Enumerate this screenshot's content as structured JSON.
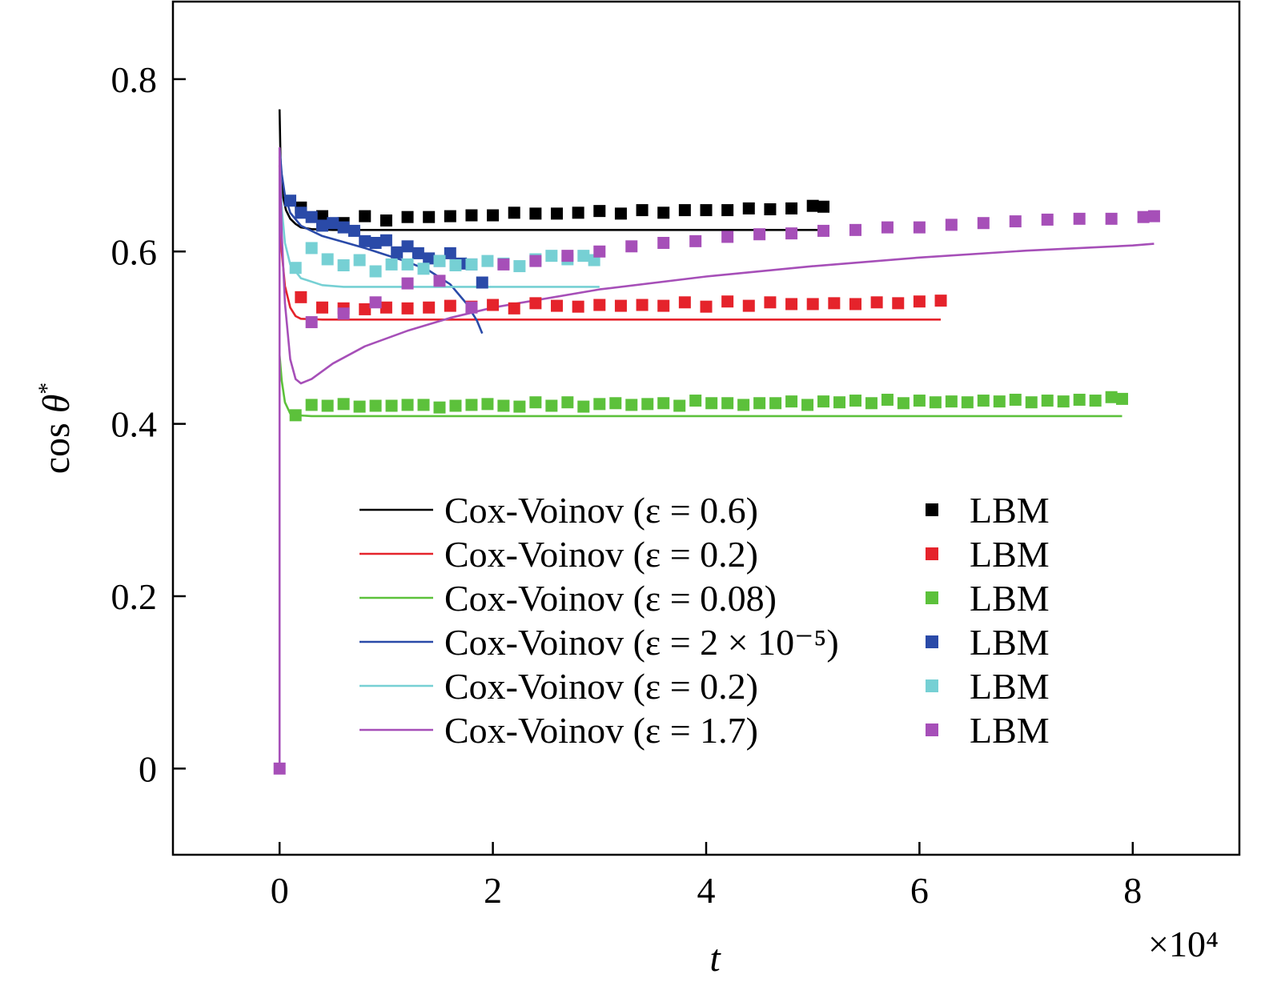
{
  "chart_data": {
    "type": "line",
    "xlabel": "t",
    "ylabel": "cos θ*",
    "x_multiplier": "×10⁴",
    "xlim": [
      -1,
      9
    ],
    "ylim": [
      -0.1,
      0.89
    ],
    "x_ticks": [
      0,
      2,
      4,
      6,
      8
    ],
    "x_tick_labels": [
      "0",
      "2",
      "4",
      "6",
      "8"
    ],
    "y_ticks": [
      0,
      0.2,
      0.4,
      0.6,
      0.8
    ],
    "y_tick_labels": [
      "0",
      "0.2",
      "0.4",
      "0.6",
      "0.8"
    ],
    "grid": false,
    "legend_position": "bottom-center",
    "series": [
      {
        "name": "Cox-Voinov (ε = 0.6)",
        "epsilon": "0.6",
        "color": "#000000",
        "curve": [
          [
            0,
            0.765
          ],
          [
            0.01,
            0.7
          ],
          [
            0.03,
            0.665
          ],
          [
            0.06,
            0.648
          ],
          [
            0.1,
            0.638
          ],
          [
            0.15,
            0.632
          ],
          [
            0.2,
            0.628
          ],
          [
            0.3,
            0.626
          ],
          [
            0.5,
            0.625
          ],
          [
            1,
            0.625
          ],
          [
            2,
            0.625
          ],
          [
            3,
            0.625
          ],
          [
            4,
            0.625
          ],
          [
            5.1,
            0.625
          ]
        ],
        "markers": [
          [
            0.2,
            0.651
          ],
          [
            0.4,
            0.641
          ],
          [
            0.6,
            0.633
          ],
          [
            0.8,
            0.641
          ],
          [
            1.0,
            0.636
          ],
          [
            1.2,
            0.64
          ],
          [
            1.4,
            0.64
          ],
          [
            1.6,
            0.641
          ],
          [
            1.8,
            0.642
          ],
          [
            2.0,
            0.642
          ],
          [
            2.2,
            0.645
          ],
          [
            2.4,
            0.644
          ],
          [
            2.6,
            0.644
          ],
          [
            2.8,
            0.645
          ],
          [
            3.0,
            0.647
          ],
          [
            3.2,
            0.644
          ],
          [
            3.4,
            0.648
          ],
          [
            3.6,
            0.645
          ],
          [
            3.8,
            0.648
          ],
          [
            4.0,
            0.648
          ],
          [
            4.2,
            0.648
          ],
          [
            4.4,
            0.65
          ],
          [
            4.6,
            0.649
          ],
          [
            4.8,
            0.65
          ],
          [
            5.0,
            0.653
          ],
          [
            5.1,
            0.652
          ]
        ]
      },
      {
        "name": "Cox-Voinov (ε = 0.2)",
        "epsilon": "0.2",
        "color": "#e5232b",
        "curve": [
          [
            0,
            0.7
          ],
          [
            0.02,
            0.6
          ],
          [
            0.05,
            0.56
          ],
          [
            0.1,
            0.535
          ],
          [
            0.15,
            0.525
          ],
          [
            0.2,
            0.522
          ],
          [
            0.4,
            0.521
          ],
          [
            1,
            0.521
          ],
          [
            2,
            0.521
          ],
          [
            3,
            0.521
          ],
          [
            4,
            0.521
          ],
          [
            5,
            0.521
          ],
          [
            6.2,
            0.521
          ]
        ],
        "markers": [
          [
            0.2,
            0.547
          ],
          [
            0.4,
            0.535
          ],
          [
            0.6,
            0.534
          ],
          [
            0.8,
            0.533
          ],
          [
            1.0,
            0.535
          ],
          [
            1.2,
            0.534
          ],
          [
            1.4,
            0.535
          ],
          [
            1.6,
            0.537
          ],
          [
            1.8,
            0.536
          ],
          [
            2.0,
            0.538
          ],
          [
            2.2,
            0.534
          ],
          [
            2.4,
            0.54
          ],
          [
            2.6,
            0.537
          ],
          [
            2.8,
            0.536
          ],
          [
            3.0,
            0.538
          ],
          [
            3.2,
            0.537
          ],
          [
            3.4,
            0.538
          ],
          [
            3.6,
            0.537
          ],
          [
            3.8,
            0.541
          ],
          [
            4.0,
            0.536
          ],
          [
            4.2,
            0.542
          ],
          [
            4.4,
            0.537
          ],
          [
            4.6,
            0.541
          ],
          [
            4.8,
            0.539
          ],
          [
            5.0,
            0.539
          ],
          [
            5.2,
            0.54
          ],
          [
            5.4,
            0.539
          ],
          [
            5.6,
            0.541
          ],
          [
            5.8,
            0.54
          ],
          [
            6.0,
            0.542
          ],
          [
            6.2,
            0.543
          ]
        ]
      },
      {
        "name": "Cox-Voinov (ε = 0.08)",
        "epsilon": "0.08",
        "color": "#5cc13b",
        "curve": [
          [
            0,
            0.48
          ],
          [
            0.02,
            0.45
          ],
          [
            0.05,
            0.425
          ],
          [
            0.1,
            0.412
          ],
          [
            0.15,
            0.41
          ],
          [
            0.3,
            0.409
          ],
          [
            1,
            0.409
          ],
          [
            2,
            0.409
          ],
          [
            3,
            0.409
          ],
          [
            4,
            0.409
          ],
          [
            5,
            0.409
          ],
          [
            6,
            0.409
          ],
          [
            7,
            0.409
          ],
          [
            7.9,
            0.409
          ]
        ],
        "markers": [
          [
            0.15,
            0.41
          ],
          [
            0.3,
            0.422
          ],
          [
            0.45,
            0.421
          ],
          [
            0.6,
            0.423
          ],
          [
            0.75,
            0.42
          ],
          [
            0.9,
            0.421
          ],
          [
            1.05,
            0.421
          ],
          [
            1.2,
            0.422
          ],
          [
            1.35,
            0.422
          ],
          [
            1.5,
            0.419
          ],
          [
            1.65,
            0.421
          ],
          [
            1.8,
            0.422
          ],
          [
            1.95,
            0.423
          ],
          [
            2.1,
            0.421
          ],
          [
            2.25,
            0.42
          ],
          [
            2.4,
            0.425
          ],
          [
            2.55,
            0.421
          ],
          [
            2.7,
            0.425
          ],
          [
            2.85,
            0.42
          ],
          [
            3.0,
            0.423
          ],
          [
            3.15,
            0.424
          ],
          [
            3.3,
            0.422
          ],
          [
            3.45,
            0.423
          ],
          [
            3.6,
            0.424
          ],
          [
            3.75,
            0.421
          ],
          [
            3.9,
            0.427
          ],
          [
            4.05,
            0.424
          ],
          [
            4.2,
            0.424
          ],
          [
            4.35,
            0.422
          ],
          [
            4.5,
            0.424
          ],
          [
            4.65,
            0.424
          ],
          [
            4.8,
            0.426
          ],
          [
            4.95,
            0.422
          ],
          [
            5.1,
            0.426
          ],
          [
            5.25,
            0.425
          ],
          [
            5.4,
            0.427
          ],
          [
            5.55,
            0.424
          ],
          [
            5.7,
            0.428
          ],
          [
            5.85,
            0.424
          ],
          [
            6.0,
            0.427
          ],
          [
            6.15,
            0.425
          ],
          [
            6.3,
            0.426
          ],
          [
            6.45,
            0.425
          ],
          [
            6.6,
            0.427
          ],
          [
            6.75,
            0.426
          ],
          [
            6.9,
            0.428
          ],
          [
            7.05,
            0.425
          ],
          [
            7.2,
            0.427
          ],
          [
            7.35,
            0.426
          ],
          [
            7.5,
            0.428
          ],
          [
            7.65,
            0.427
          ],
          [
            7.8,
            0.431
          ],
          [
            7.9,
            0.429
          ]
        ]
      },
      {
        "name": "Cox-Voinov (ε = 2 × 10⁻⁵)",
        "epsilon": "2 × 10⁻⁵",
        "color": "#2a4aa8",
        "curve": [
          [
            0,
            0.72
          ],
          [
            0.02,
            0.69
          ],
          [
            0.05,
            0.665
          ],
          [
            0.1,
            0.645
          ],
          [
            0.2,
            0.63
          ],
          [
            0.4,
            0.618
          ],
          [
            0.6,
            0.611
          ],
          [
            0.8,
            0.604
          ],
          [
            1.0,
            0.596
          ],
          [
            1.2,
            0.588
          ],
          [
            1.4,
            0.578
          ],
          [
            1.6,
            0.562
          ],
          [
            1.75,
            0.54
          ],
          [
            1.85,
            0.52
          ],
          [
            1.9,
            0.505
          ]
        ],
        "markers": [
          [
            0.1,
            0.659
          ],
          [
            0.2,
            0.645
          ],
          [
            0.3,
            0.64
          ],
          [
            0.4,
            0.63
          ],
          [
            0.5,
            0.633
          ],
          [
            0.6,
            0.628
          ],
          [
            0.7,
            0.624
          ],
          [
            0.8,
            0.612
          ],
          [
            0.9,
            0.61
          ],
          [
            1.0,
            0.613
          ],
          [
            1.1,
            0.599
          ],
          [
            1.2,
            0.606
          ],
          [
            1.3,
            0.598
          ],
          [
            1.4,
            0.592
          ],
          [
            1.5,
            0.589
          ],
          [
            1.6,
            0.598
          ],
          [
            1.7,
            0.586
          ],
          [
            1.8,
            0.585
          ],
          [
            1.9,
            0.564
          ]
        ]
      },
      {
        "name": "Cox-Voinov (ε = 0.2)",
        "epsilon": "0.2",
        "color": "#76d0d4",
        "curve": [
          [
            0,
            0.71
          ],
          [
            0.02,
            0.65
          ],
          [
            0.05,
            0.61
          ],
          [
            0.1,
            0.585
          ],
          [
            0.2,
            0.569
          ],
          [
            0.4,
            0.561
          ],
          [
            0.6,
            0.559
          ],
          [
            1,
            0.559
          ],
          [
            2,
            0.559
          ],
          [
            3,
            0.559
          ]
        ],
        "markers": [
          [
            0.15,
            0.581
          ],
          [
            0.3,
            0.604
          ],
          [
            0.45,
            0.591
          ],
          [
            0.6,
            0.584
          ],
          [
            0.75,
            0.59
          ],
          [
            0.9,
            0.577
          ],
          [
            1.05,
            0.585
          ],
          [
            1.2,
            0.585
          ],
          [
            1.35,
            0.58
          ],
          [
            1.5,
            0.589
          ],
          [
            1.65,
            0.584
          ],
          [
            1.8,
            0.585
          ],
          [
            1.95,
            0.589
          ],
          [
            2.1,
            0.586
          ],
          [
            2.25,
            0.583
          ],
          [
            2.4,
            0.591
          ],
          [
            2.55,
            0.595
          ],
          [
            2.7,
            0.591
          ],
          [
            2.85,
            0.595
          ],
          [
            2.95,
            0.59
          ]
        ]
      },
      {
        "name": "Cox-Voinov (ε = 1.7)",
        "epsilon": "1.7",
        "color": "#a64fb8",
        "curve": [
          [
            0,
            0.0
          ],
          [
            0,
            0.72
          ],
          [
            0.02,
            0.62
          ],
          [
            0.05,
            0.54
          ],
          [
            0.1,
            0.475
          ],
          [
            0.15,
            0.452
          ],
          [
            0.2,
            0.447
          ],
          [
            0.3,
            0.452
          ],
          [
            0.5,
            0.47
          ],
          [
            0.8,
            0.49
          ],
          [
            1.2,
            0.508
          ],
          [
            1.6,
            0.523
          ],
          [
            2,
            0.535
          ],
          [
            3,
            0.556
          ],
          [
            4,
            0.571
          ],
          [
            5,
            0.583
          ],
          [
            6,
            0.593
          ],
          [
            7,
            0.601
          ],
          [
            8,
            0.607
          ],
          [
            8.2,
            0.609
          ]
        ],
        "markers": [
          [
            0,
            0.0
          ],
          [
            0.3,
            0.518
          ],
          [
            0.6,
            0.528
          ],
          [
            0.9,
            0.541
          ],
          [
            1.2,
            0.563
          ],
          [
            1.5,
            0.566
          ],
          [
            1.8,
            0.535
          ],
          [
            2.1,
            0.585
          ],
          [
            2.4,
            0.589
          ],
          [
            2.7,
            0.595
          ],
          [
            3.0,
            0.6
          ],
          [
            3.3,
            0.606
          ],
          [
            3.6,
            0.61
          ],
          [
            3.9,
            0.612
          ],
          [
            4.2,
            0.617
          ],
          [
            4.5,
            0.62
          ],
          [
            4.8,
            0.621
          ],
          [
            5.1,
            0.624
          ],
          [
            5.4,
            0.625
          ],
          [
            5.7,
            0.628
          ],
          [
            6.0,
            0.628
          ],
          [
            6.3,
            0.631
          ],
          [
            6.6,
            0.633
          ],
          [
            6.9,
            0.635
          ],
          [
            7.2,
            0.637
          ],
          [
            7.5,
            0.638
          ],
          [
            7.8,
            0.638
          ],
          [
            8.1,
            0.64
          ],
          [
            8.2,
            0.641
          ]
        ]
      }
    ],
    "legend": {
      "line_labels": [
        "Cox-Voinov (ε = 0.6)",
        "Cox-Voinov (ε = 0.2)",
        "Cox-Voinov (ε = 0.08)",
        "Cox-Voinov (ε = 2 × 10⁻⁵)",
        "Cox-Voinov (ε = 0.2)",
        "Cox-Voinov (ε = 1.7)"
      ],
      "marker_labels": [
        "LBM",
        "LBM",
        "LBM",
        "LBM",
        "LBM",
        "LBM"
      ]
    }
  }
}
